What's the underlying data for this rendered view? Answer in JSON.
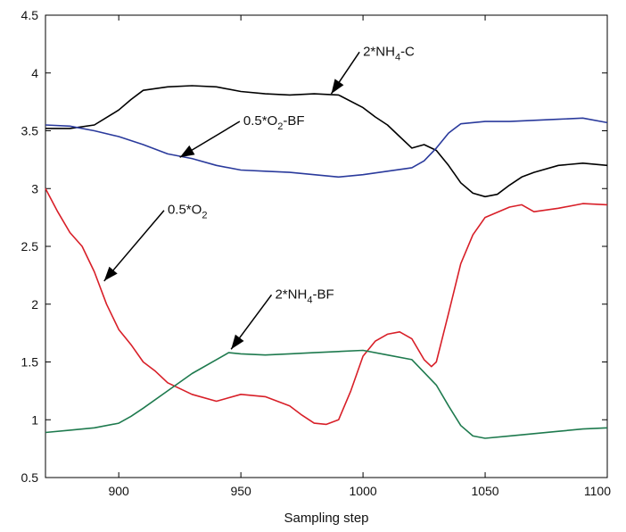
{
  "chart_data": {
    "type": "line",
    "title": "",
    "xlabel": "Sampling step",
    "ylabel": "",
    "xlim": [
      870,
      1100
    ],
    "ylim": [
      0.5,
      4.5
    ],
    "x_ticks": [
      900,
      950,
      1000,
      1050,
      1100
    ],
    "y_ticks": [
      0.5,
      1,
      1.5,
      2,
      2.5,
      3,
      3.5,
      4,
      4.5
    ],
    "grid": false,
    "legend": "none",
    "series": [
      {
        "color": "#000000",
        "x": [
          870,
          880,
          890,
          900,
          905,
          910,
          920,
          930,
          940,
          950,
          960,
          970,
          980,
          990,
          1000,
          1005,
          1010,
          1015,
          1020,
          1025,
          1030,
          1035,
          1040,
          1045,
          1050,
          1055,
          1060,
          1065,
          1070,
          1080,
          1090,
          1100
        ],
        "y": [
          3.52,
          3.52,
          3.55,
          3.68,
          3.77,
          3.85,
          3.88,
          3.89,
          3.88,
          3.84,
          3.82,
          3.81,
          3.82,
          3.81,
          3.7,
          3.62,
          3.55,
          3.45,
          3.35,
          3.38,
          3.33,
          3.2,
          3.05,
          2.96,
          2.93,
          2.95,
          3.03,
          3.1,
          3.14,
          3.2,
          3.22,
          3.2
        ]
      },
      {
        "color": "#2a3a9c",
        "x": [
          870,
          880,
          890,
          900,
          910,
          920,
          930,
          940,
          950,
          960,
          970,
          980,
          990,
          1000,
          1010,
          1020,
          1025,
          1030,
          1035,
          1040,
          1050,
          1060,
          1070,
          1080,
          1090,
          1100
        ],
        "y": [
          3.55,
          3.54,
          3.5,
          3.45,
          3.38,
          3.3,
          3.26,
          3.2,
          3.16,
          3.15,
          3.14,
          3.12,
          3.1,
          3.12,
          3.15,
          3.18,
          3.24,
          3.35,
          3.48,
          3.56,
          3.58,
          3.58,
          3.59,
          3.6,
          3.61,
          3.57
        ]
      },
      {
        "color": "#d81f28",
        "x": [
          870,
          875,
          880,
          885,
          890,
          895,
          900,
          905,
          910,
          915,
          920,
          930,
          940,
          950,
          960,
          970,
          975,
          980,
          985,
          990,
          995,
          1000,
          1005,
          1010,
          1015,
          1020,
          1025,
          1028,
          1030,
          1035,
          1040,
          1045,
          1050,
          1060,
          1065,
          1070,
          1080,
          1090,
          1100
        ],
        "y": [
          3.0,
          2.8,
          2.62,
          2.5,
          2.28,
          2.0,
          1.78,
          1.65,
          1.5,
          1.42,
          1.32,
          1.22,
          1.16,
          1.22,
          1.2,
          1.12,
          1.04,
          0.97,
          0.96,
          1.0,
          1.25,
          1.55,
          1.68,
          1.74,
          1.76,
          1.7,
          1.52,
          1.46,
          1.5,
          1.92,
          2.35,
          2.6,
          2.75,
          2.84,
          2.86,
          2.8,
          2.83,
          2.87,
          2.86
        ]
      },
      {
        "color": "#1e7a4e",
        "x": [
          870,
          880,
          890,
          900,
          905,
          910,
          920,
          930,
          940,
          945,
          950,
          960,
          970,
          980,
          990,
          1000,
          1010,
          1020,
          1030,
          1035,
          1040,
          1045,
          1050,
          1060,
          1070,
          1080,
          1090,
          1100
        ],
        "y": [
          0.89,
          0.91,
          0.93,
          0.97,
          1.03,
          1.1,
          1.25,
          1.4,
          1.52,
          1.58,
          1.57,
          1.56,
          1.57,
          1.58,
          1.59,
          1.6,
          1.56,
          1.52,
          1.3,
          1.12,
          0.95,
          0.86,
          0.84,
          0.86,
          0.88,
          0.9,
          0.92,
          0.93
        ]
      }
    ],
    "annotations": [
      {
        "text": "2*NH",
        "sub": "4",
        "after": "-C",
        "x": 1000,
        "y": 4.15,
        "arrow_to": [
          987,
          3.82
        ]
      },
      {
        "text": "0.5*O",
        "sub": "2",
        "after": "-BF",
        "x": 951,
        "y": 3.55,
        "arrow_to": [
          925,
          3.27
        ]
      },
      {
        "text": "0.5*O",
        "sub": "2",
        "after": "",
        "x": 920,
        "y": 2.78,
        "arrow_to": [
          894,
          2.2
        ]
      },
      {
        "text": "2*NH",
        "sub": "4",
        "after": "-BF",
        "x": 964,
        "y": 2.05,
        "arrow_to": [
          946,
          1.61
        ]
      }
    ]
  }
}
